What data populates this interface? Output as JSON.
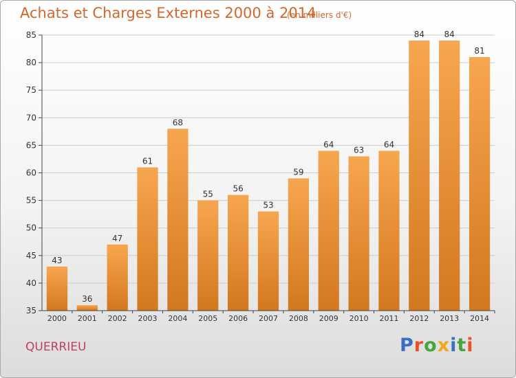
{
  "header": {
    "title": "Achats et Charges Externes 2000 à 2014",
    "subtitle": "(en milliers d'€)"
  },
  "footer": {
    "location": "QUERRIEU",
    "brand": "Proxiti",
    "brand_colors": [
      "#3a6fc4",
      "#e8502a",
      "#48a43c",
      "#f2a81d",
      "#3a6fc4",
      "#48a43c",
      "#e8502a"
    ]
  },
  "colors": {
    "bar_light": "#f7a650",
    "bar_dark": "#d2781f",
    "title": "#d4662a",
    "axis": "#444444",
    "grid": "#cccccc"
  },
  "chart_data": {
    "type": "bar",
    "title": "Achats et Charges Externes 2000 à 2014",
    "subtitle": "(en milliers d'€)",
    "categories": [
      "2000",
      "2001",
      "2002",
      "2003",
      "2004",
      "2005",
      "2006",
      "2007",
      "2008",
      "2009",
      "2010",
      "2011",
      "2012",
      "2013",
      "2014"
    ],
    "values": [
      43,
      36,
      47,
      61,
      68,
      55,
      56,
      53,
      59,
      64,
      63,
      64,
      84,
      84,
      81
    ],
    "ylim": [
      35,
      85
    ],
    "yticks": [
      35,
      40,
      45,
      50,
      55,
      60,
      65,
      70,
      75,
      80,
      85
    ],
    "grid": true,
    "data_labels": true
  }
}
